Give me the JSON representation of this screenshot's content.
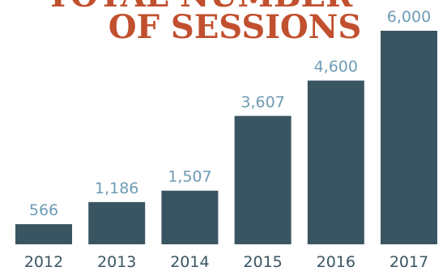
{
  "chart_data": {
    "type": "bar",
    "title_lines": [
      "TOTAL NUMBER",
      "OF SESSIONS"
    ],
    "categories": [
      "2012",
      "2013",
      "2014",
      "2015",
      "2016",
      "2017"
    ],
    "values": [
      566,
      1186,
      1507,
      3607,
      4600,
      6000
    ],
    "value_labels": [
      "566",
      "1,186",
      "1,507",
      "3,607",
      "4,600",
      "6,000"
    ],
    "ylim": [
      0,
      6000
    ],
    "grid": false,
    "legend": "none",
    "colors": {
      "bar": "#3a5562",
      "value_label": "#6e9bb4",
      "year_label": "#3a5562",
      "title": "#c1502e"
    }
  }
}
